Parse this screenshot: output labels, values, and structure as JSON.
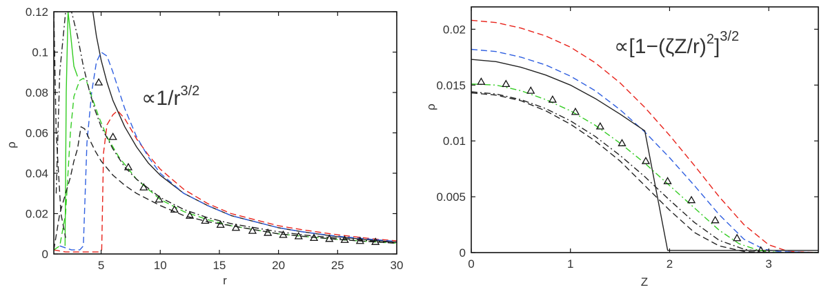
{
  "chart_data": [
    {
      "type": "line",
      "xlabel": "r",
      "ylabel": "ρ",
      "xlim": [
        1,
        30
      ],
      "ylim": [
        0,
        0.12
      ],
      "xticks": [
        5,
        10,
        15,
        20,
        25,
        30
      ],
      "xtick_labels": [
        "5",
        "10",
        "15",
        "20",
        "25",
        "30"
      ],
      "yticks": [
        0,
        0.02,
        0.04,
        0.06,
        0.08,
        0.1,
        0.12
      ],
      "ytick_labels": [
        "0",
        "0.02",
        "0.04",
        "0.06",
        "0.08",
        "0.1",
        "0.12"
      ],
      "annotation": {
        "main": "∝1/r",
        "sup": "3/2"
      },
      "series": [
        {
          "style": "solid",
          "color": "#222222",
          "x": [
            4.3,
            4.6,
            5,
            5.5,
            6,
            7,
            8,
            9,
            10,
            12,
            14,
            16,
            18,
            20,
            22,
            25,
            28,
            30
          ],
          "y": [
            0.12,
            0.108,
            0.096,
            0.085,
            0.076,
            0.063,
            0.053,
            0.045,
            0.039,
            0.03,
            0.024,
            0.019,
            0.016,
            0.013,
            0.011,
            0.0085,
            0.0068,
            0.0058
          ]
        },
        {
          "style": "dashed",
          "color": "#e8221a",
          "x": [
            1,
            2,
            3,
            4,
            4.8,
            5.05,
            5.2,
            5.5,
            6,
            6.4,
            7,
            8,
            9,
            10,
            12,
            14,
            16,
            18,
            20,
            22,
            25,
            28,
            30
          ],
          "y": [
            0.002,
            0.001,
            0.001,
            0.001,
            0.001,
            0.002,
            0.05,
            0.064,
            0.069,
            0.071,
            0.067,
            0.057,
            0.049,
            0.042,
            0.032,
            0.025,
            0.02,
            0.017,
            0.014,
            0.012,
            0.0095,
            0.0075,
            0.0065
          ]
        },
        {
          "style": "dashed",
          "color": "#2f5fe0",
          "x": [
            1.5,
            2.5,
            3.2,
            3.5,
            3.8,
            4.2,
            4.6,
            5,
            5.5,
            6,
            7,
            8,
            9,
            10,
            12,
            14,
            16,
            18,
            20,
            22,
            25,
            28,
            30
          ],
          "y": [
            0.004,
            0.002,
            0.002,
            0.004,
            0.055,
            0.08,
            0.095,
            0.1,
            0.098,
            0.09,
            0.072,
            0.058,
            0.048,
            0.04,
            0.03,
            0.024,
            0.019,
            0.016,
            0.013,
            0.011,
            0.0088,
            0.0072,
            0.0062
          ]
        },
        {
          "style": "dashed",
          "color": "#33cc22",
          "x": [
            1,
            1.5,
            2,
            2.4,
            2.7,
            3,
            3.2,
            3.5,
            3.8,
            4.2,
            4.8,
            5.5,
            6.5,
            8,
            10,
            12,
            14,
            16,
            18,
            20,
            22,
            25,
            28,
            30
          ],
          "y": [
            0.002,
            0.004,
            0.02,
            0.06,
            0.078,
            0.083,
            0.086,
            0.087,
            0.085,
            0.078,
            0.068,
            0.058,
            0.048,
            0.037,
            0.027,
            0.021,
            0.017,
            0.014,
            0.012,
            0.01,
            0.0088,
            0.0072,
            0.006,
            0.0053
          ]
        },
        {
          "style": "solid",
          "color": "#33cc22",
          "x": [
            1.95,
            2.05,
            2.2,
            2.4,
            2.7,
            3.0
          ],
          "y": [
            0.004,
            0.08,
            0.12,
            0.11,
            0.093,
            0.088
          ]
        },
        {
          "style": "dashed",
          "color": "#222222",
          "x": [
            1,
            1.5,
            2,
            2.4,
            2.7,
            3.0,
            3.3,
            3.6,
            4.0,
            4.5,
            5,
            6,
            7,
            8,
            10,
            12,
            14,
            16,
            18,
            20,
            22,
            25,
            28,
            30
          ],
          "y": [
            0.002,
            0.02,
            0.03,
            0.038,
            0.046,
            0.052,
            0.063,
            0.062,
            0.057,
            0.051,
            0.046,
            0.039,
            0.034,
            0.03,
            0.024,
            0.019,
            0.016,
            0.014,
            0.012,
            0.01,
            0.0088,
            0.0072,
            0.006,
            0.0053
          ]
        },
        {
          "style": "dashdot",
          "color": "#222222",
          "x": [
            1.2,
            1.5,
            2.0,
            2.5,
            3.0,
            3.5,
            4.0,
            4.5,
            5,
            6,
            7,
            8,
            10,
            12,
            14,
            16,
            18,
            20,
            22,
            25,
            28,
            30
          ],
          "y": [
            0.03,
            0.09,
            0.12,
            0.12,
            0.108,
            0.093,
            0.081,
            0.071,
            0.063,
            0.052,
            0.043,
            0.037,
            0.028,
            0.022,
            0.018,
            0.015,
            0.013,
            0.011,
            0.0095,
            0.0078,
            0.0064,
            0.0057
          ]
        },
        {
          "style": "dashed",
          "color": "#222222",
          "x": [
            1,
            1.2,
            1.6,
            2.0
          ],
          "y": [
            0.12,
            0.06,
            0.02,
            0.008
          ]
        },
        {
          "style": "markers",
          "color": "#111111",
          "marker": "triangle",
          "x": [
            4.8,
            6.0,
            7.3,
            8.6,
            9.9,
            11.2,
            12.5,
            13.8,
            15.1,
            16.4,
            17.8,
            19.1,
            20.4,
            21.7,
            23.0,
            24.3,
            25.6,
            26.9,
            28.2
          ],
          "y": [
            0.085,
            0.058,
            0.043,
            0.033,
            0.027,
            0.022,
            0.019,
            0.0165,
            0.0145,
            0.013,
            0.0115,
            0.0105,
            0.0095,
            0.0088,
            0.008,
            0.0075,
            0.007,
            0.0065,
            0.006
          ]
        }
      ]
    },
    {
      "type": "line",
      "xlabel": "Z",
      "ylabel": "ρ",
      "xlim": [
        0,
        3.5
      ],
      "ylim": [
        0,
        0.022
      ],
      "xticks": [
        0,
        1,
        2,
        3
      ],
      "xtick_labels": [
        "0",
        "1",
        "2",
        "3"
      ],
      "yticks": [
        0,
        0.005,
        0.01,
        0.015,
        0.02
      ],
      "ytick_labels": [
        "0",
        "0.005",
        "0.01",
        "0.015",
        "0.02"
      ],
      "annotation": {
        "main": "∝[1−(ζZ/r)",
        "sup1": "2",
        "close": "]",
        "sup2": "3/2"
      },
      "series": [
        {
          "style": "dashed",
          "color": "#e8221a",
          "x": [
            0,
            0.25,
            0.5,
            0.75,
            1.0,
            1.25,
            1.5,
            1.75,
            2.0,
            2.25,
            2.5,
            2.75,
            3.0,
            3.2,
            3.5
          ],
          "y": [
            0.0208,
            0.0206,
            0.0201,
            0.0194,
            0.0184,
            0.017,
            0.0152,
            0.013,
            0.0105,
            0.0078,
            0.005,
            0.0025,
            0.0007,
            0.0001,
            0.0
          ]
        },
        {
          "style": "dashed",
          "color": "#2f5fe0",
          "x": [
            0,
            0.25,
            0.5,
            0.75,
            1.0,
            1.25,
            1.5,
            1.75,
            2.0,
            2.25,
            2.5,
            2.75,
            2.95,
            3.1,
            3.5
          ],
          "y": [
            0.0182,
            0.018,
            0.0175,
            0.0168,
            0.0158,
            0.0145,
            0.0128,
            0.0108,
            0.0085,
            0.006,
            0.0034,
            0.0012,
            0.0003,
            0.0001,
            0.0
          ]
        },
        {
          "style": "solid",
          "color": "#222222",
          "x": [
            0,
            0.25,
            0.5,
            0.75,
            1.0,
            1.25,
            1.5,
            1.75,
            1.98,
            2.0,
            2.5,
            3.0,
            3.5
          ],
          "y": [
            0.0173,
            0.0171,
            0.0166,
            0.0159,
            0.015,
            0.0138,
            0.0124,
            0.0109,
            0.0002,
            0.0002,
            0.0002,
            0.0002,
            0.0002
          ]
        },
        {
          "style": "dashdot",
          "color": "#33cc22",
          "x": [
            0,
            0.25,
            0.5,
            0.75,
            1.0,
            1.25,
            1.5,
            1.75,
            2.0,
            2.25,
            2.5,
            2.7,
            2.9,
            3.1,
            3.5
          ],
          "y": [
            0.0151,
            0.015,
            0.0145,
            0.0137,
            0.0127,
            0.0114,
            0.0098,
            0.008,
            0.006,
            0.004,
            0.002,
            0.0008,
            0.0002,
            0.0,
            0.0
          ]
        },
        {
          "style": "dashdot",
          "color": "#222222",
          "x": [
            0,
            0.25,
            0.5,
            0.75,
            1.0,
            1.25,
            1.5,
            1.75,
            2.0,
            2.25,
            2.5,
            2.75,
            3.0,
            3.5
          ],
          "y": [
            0.0144,
            0.0142,
            0.0137,
            0.0129,
            0.0118,
            0.0104,
            0.0087,
            0.0068,
            0.0047,
            0.0027,
            0.0011,
            0.0003,
            0.0,
            0.0
          ]
        },
        {
          "style": "dashed",
          "color": "#222222",
          "x": [
            0,
            0.25,
            0.5,
            0.75,
            1.0,
            1.25,
            1.5,
            1.75,
            2.0,
            2.25,
            2.5,
            2.75,
            3.0,
            3.5
          ],
          "y": [
            0.0143,
            0.0141,
            0.0136,
            0.0127,
            0.0115,
            0.01,
            0.0082,
            0.006,
            0.0038,
            0.0018,
            0.0006,
            0.0001,
            0.0,
            0.0
          ]
        },
        {
          "style": "markers",
          "color": "#111111",
          "marker": "triangle",
          "x": [
            0.1,
            0.35,
            0.6,
            0.82,
            1.05,
            1.3,
            1.52,
            1.76,
            1.98,
            2.22,
            2.46,
            2.68,
            2.92
          ],
          "y": [
            0.0153,
            0.0151,
            0.0145,
            0.0137,
            0.0126,
            0.0113,
            0.0098,
            0.0082,
            0.0064,
            0.0047,
            0.0029,
            0.0013,
            0.0002
          ]
        }
      ]
    }
  ]
}
